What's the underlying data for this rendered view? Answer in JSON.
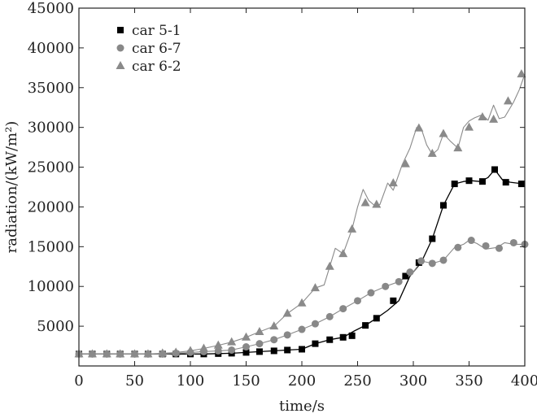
{
  "chart_data": {
    "type": "line",
    "title": "",
    "xlabel": "time/s",
    "ylabel": "radiation/(kW/m²)",
    "xlim": [
      0,
      400
    ],
    "ylim": [
      0,
      45000
    ],
    "xticks": [
      0,
      50,
      100,
      150,
      200,
      250,
      300,
      350,
      400
    ],
    "yticks": [
      5000,
      10000,
      15000,
      20000,
      25000,
      30000,
      35000,
      40000,
      45000
    ],
    "legend_position": "top-left",
    "grid": false,
    "colors": {
      "series_a": "#000000",
      "series_b": "#888888",
      "series_c": "#8a8a8a",
      "axis": "#222222"
    },
    "series": [
      {
        "name": "car 5-1",
        "marker": "square",
        "x": [
          0,
          12,
          25,
          37,
          50,
          62,
          75,
          87,
          100,
          112,
          125,
          137,
          150,
          162,
          175,
          187,
          200,
          212,
          225,
          237,
          247,
          257,
          267,
          277,
          287,
          297,
          307,
          317,
          327,
          337,
          345,
          352,
          360,
          367,
          373,
          380,
          387,
          393,
          400
        ],
        "y": [
          1500,
          1500,
          1500,
          1500,
          1500,
          1500,
          1500,
          1500,
          1500,
          1500,
          1550,
          1600,
          1700,
          1800,
          1900,
          2000,
          2100,
          2800,
          3300,
          3600,
          4400,
          5100,
          6000,
          7000,
          8200,
          11300,
          13000,
          16000,
          20200,
          22900,
          23200,
          23300,
          23200,
          23700,
          24700,
          23400,
          23100,
          23000,
          22900
        ],
        "markers_x": [
          0,
          12,
          25,
          37,
          50,
          62,
          75,
          87,
          100,
          112,
          125,
          137,
          150,
          162,
          175,
          187,
          200,
          212,
          225,
          237,
          245,
          257,
          267,
          282,
          293,
          305,
          317,
          327,
          337,
          350,
          362,
          373,
          383,
          397
        ],
        "markers_y": [
          1500,
          1500,
          1500,
          1500,
          1500,
          1500,
          1500,
          1500,
          1500,
          1500,
          1550,
          1600,
          1700,
          1800,
          1900,
          2000,
          2100,
          2800,
          3300,
          3600,
          3800,
          5100,
          6000,
          8200,
          11300,
          13000,
          16000,
          20200,
          22900,
          23300,
          23200,
          24700,
          23100,
          22900
        ]
      },
      {
        "name": "car 6-7",
        "marker": "circle",
        "x": [
          0,
          12,
          25,
          37,
          50,
          62,
          75,
          87,
          100,
          112,
          125,
          137,
          150,
          162,
          175,
          187,
          200,
          212,
          225,
          237,
          250,
          262,
          275,
          287,
          300,
          307,
          317,
          327,
          337,
          345,
          350,
          357,
          365,
          375,
          382,
          390,
          400
        ],
        "y": [
          1500,
          1500,
          1500,
          1500,
          1500,
          1500,
          1500,
          1600,
          1700,
          1800,
          1900,
          2000,
          2400,
          2800,
          3300,
          3900,
          4600,
          5300,
          6200,
          7200,
          8200,
          9200,
          10000,
          10600,
          11800,
          13200,
          12900,
          13300,
          14900,
          15300,
          15800,
          15400,
          14700,
          14900,
          15500,
          15300,
          15300
        ],
        "markers_x": [
          0,
          12,
          25,
          37,
          50,
          62,
          75,
          87,
          100,
          112,
          125,
          137,
          150,
          162,
          175,
          187,
          200,
          212,
          225,
          237,
          250,
          262,
          275,
          287,
          297,
          307,
          317,
          327,
          340,
          352,
          365,
          377,
          390,
          400
        ],
        "markers_y": [
          1500,
          1500,
          1500,
          1500,
          1500,
          1500,
          1500,
          1600,
          1700,
          1800,
          1900,
          2000,
          2400,
          2800,
          3300,
          3900,
          4600,
          5300,
          6200,
          7200,
          8200,
          9200,
          10000,
          10600,
          11800,
          13200,
          12900,
          13300,
          14900,
          15800,
          15100,
          14800,
          15500,
          15300
        ]
      },
      {
        "name": "car 6-2",
        "marker": "triangle",
        "x": [
          0,
          12,
          25,
          37,
          50,
          62,
          75,
          87,
          100,
          112,
          125,
          137,
          150,
          162,
          175,
          187,
          200,
          212,
          220,
          225,
          230,
          237,
          245,
          250,
          255,
          260,
          265,
          270,
          277,
          282,
          290,
          297,
          303,
          307,
          312,
          317,
          322,
          327,
          333,
          340,
          345,
          350,
          355,
          362,
          367,
          372,
          377,
          382,
          390,
          395,
          400
        ],
        "y": [
          1500,
          1500,
          1500,
          1500,
          1500,
          1500,
          1600,
          1700,
          1900,
          2200,
          2600,
          3000,
          3600,
          4300,
          5000,
          6600,
          7900,
          9800,
          10200,
          12500,
          14800,
          14100,
          17200,
          20000,
          22200,
          20800,
          20200,
          20300,
          23000,
          22100,
          25300,
          27400,
          30000,
          29900,
          27800,
          26600,
          27200,
          29200,
          28300,
          27400,
          30000,
          30800,
          31200,
          31600,
          30900,
          32800,
          31100,
          31300,
          33200,
          34700,
          36700
        ],
        "markers_x": [
          0,
          12,
          25,
          37,
          50,
          62,
          75,
          87,
          100,
          112,
          125,
          137,
          150,
          162,
          175,
          187,
          200,
          212,
          225,
          237,
          245,
          257,
          267,
          282,
          293,
          305,
          317,
          327,
          340,
          350,
          362,
          372,
          385,
          397
        ],
        "markers_y": [
          1500,
          1500,
          1500,
          1500,
          1500,
          1500,
          1600,
          1700,
          1900,
          2200,
          2600,
          3000,
          3600,
          4300,
          5000,
          6600,
          7900,
          9800,
          12500,
          14100,
          17200,
          20500,
          20300,
          23000,
          25400,
          29900,
          26700,
          29200,
          27400,
          30000,
          31300,
          31000,
          33300,
          36700
        ]
      }
    ]
  }
}
